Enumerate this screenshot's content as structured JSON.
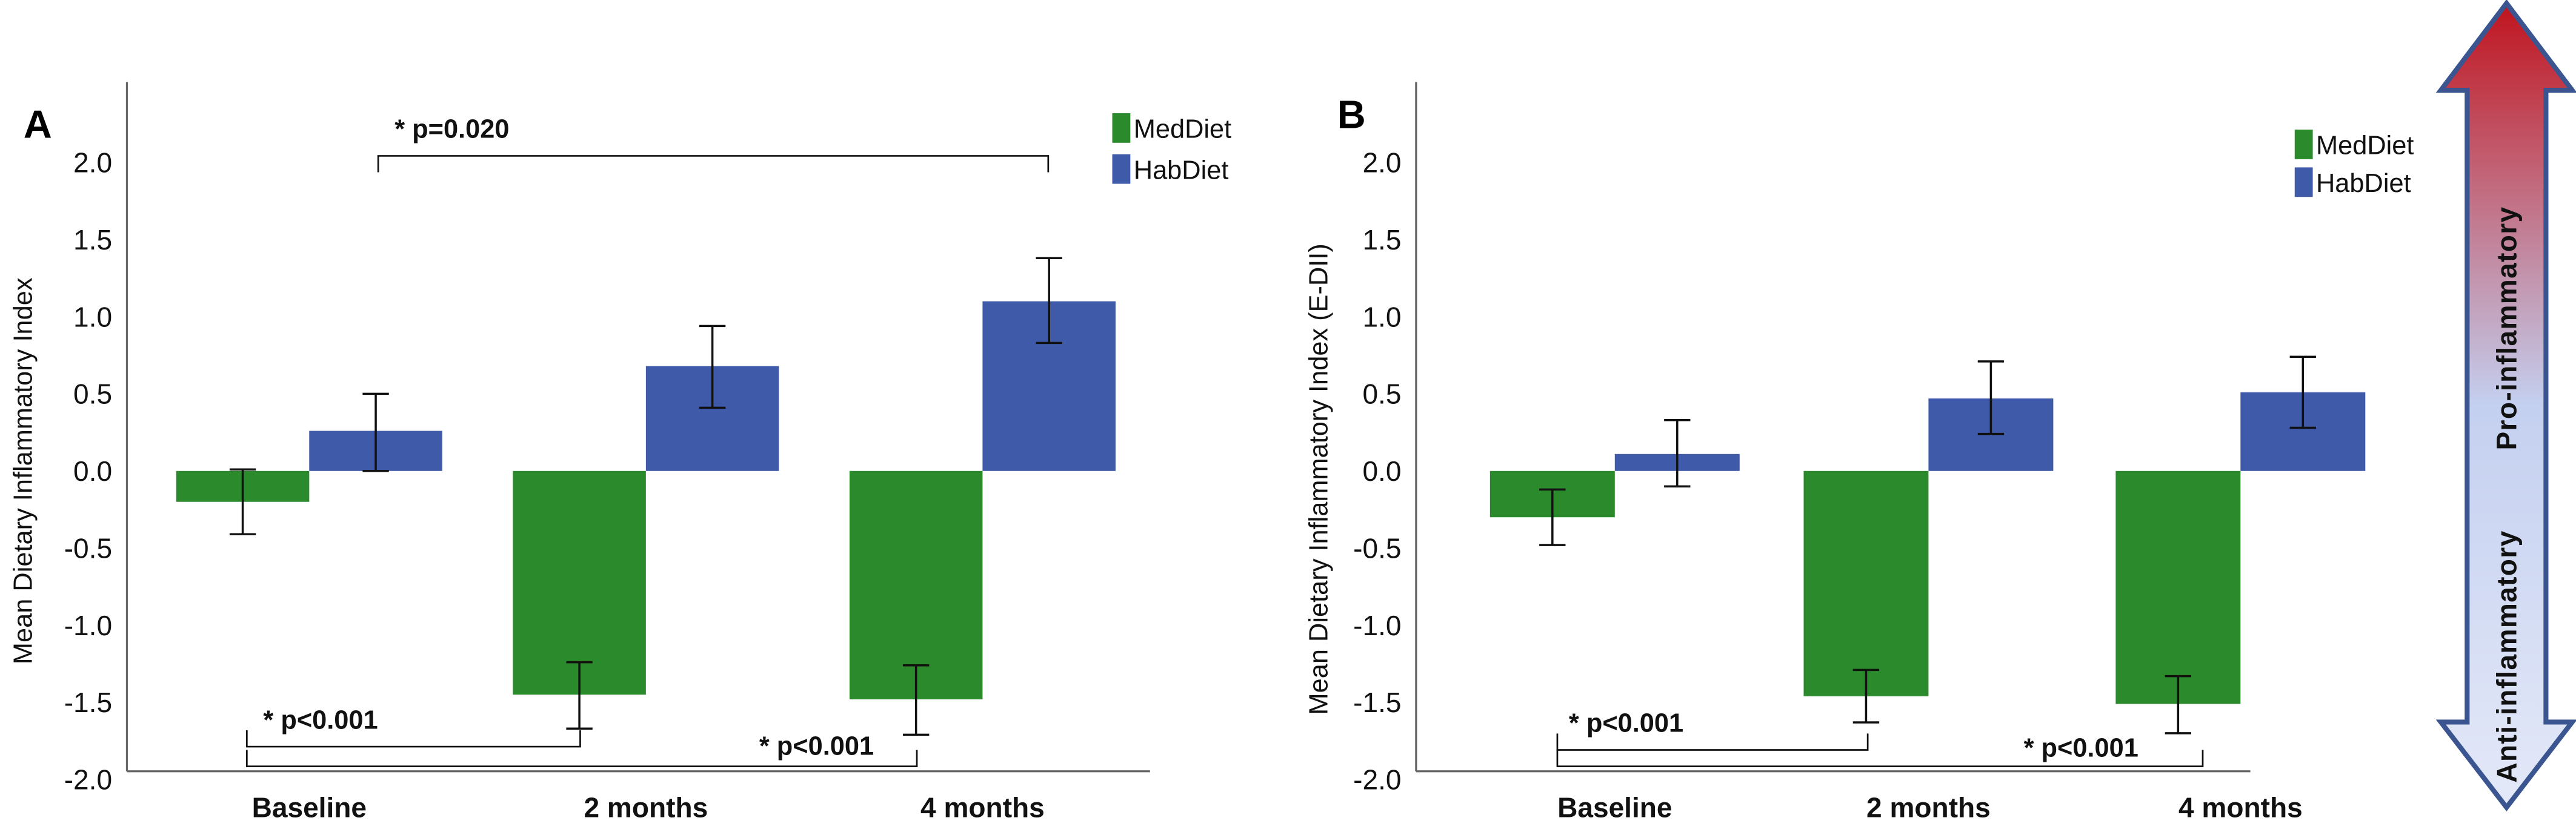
{
  "colors": {
    "MedDiet": "#2b8a2b",
    "HabDiet": "#3f5aa8"
  },
  "arrow": {
    "top_label": "Pro-inflammatory",
    "bottom_label": "Anti-inflammatory",
    "colors": {
      "top": "#c0141e",
      "middle": "#c4d0f0",
      "bottom": "#e4e9f8",
      "outline": "#3a5590"
    }
  },
  "chart_data": [
    {
      "panel_label": "A",
      "type": "bar",
      "ylabel": "Mean Dietary Inflammatory Index",
      "ylim": [
        -2.0,
        2.0
      ],
      "yticks": [
        "2.0",
        "1.5",
        "1.0",
        "0.5",
        "0.0",
        "-0.5",
        "-1.0",
        "-1.5",
        "-2.0"
      ],
      "categories": [
        "Baseline",
        "2 months",
        "4 months"
      ],
      "legend": "top-right",
      "series": [
        {
          "name": "MedDiet",
          "values": [
            -0.2,
            -1.45,
            -1.48
          ],
          "err_low": [
            -0.41,
            -1.67,
            -1.71
          ],
          "err_high": [
            0.01,
            -1.24,
            -1.26
          ]
        },
        {
          "name": "HabDiet",
          "values": [
            0.26,
            0.68,
            1.1
          ],
          "err_low": [
            0.0,
            0.41,
            0.83
          ],
          "err_high": [
            0.5,
            0.94,
            1.38
          ]
        }
      ],
      "annotations": [
        {
          "text": "* p=0.020",
          "between": [
            "Baseline HabDiet",
            "4 months HabDiet"
          ]
        },
        {
          "text": "* p<0.001",
          "between": [
            "Baseline MedDiet",
            "2 months MedDiet"
          ]
        },
        {
          "text": "* p<0.001",
          "between": [
            "Baseline MedDiet",
            "4 months MedDiet"
          ]
        }
      ]
    },
    {
      "panel_label": "B",
      "type": "bar",
      "ylabel": "Mean Dietary Inflammatory Index (E-DII)",
      "ylim": [
        -2.0,
        2.0
      ],
      "yticks": [
        "2.0",
        "1.5",
        "1.0",
        "0.5",
        "0.0",
        "-0.5",
        "-1.0",
        "-1.5",
        "-2.0"
      ],
      "categories": [
        "Baseline",
        "2 months",
        "4 months"
      ],
      "legend": "top-right",
      "series": [
        {
          "name": "MedDiet",
          "values": [
            -0.3,
            -1.46,
            -1.51
          ],
          "err_low": [
            -0.48,
            -1.63,
            -1.7
          ],
          "err_high": [
            -0.12,
            -1.29,
            -1.33
          ]
        },
        {
          "name": "HabDiet",
          "values": [
            0.11,
            0.47,
            0.51
          ],
          "err_low": [
            -0.1,
            0.24,
            0.28
          ],
          "err_high": [
            0.33,
            0.71,
            0.74
          ]
        }
      ],
      "annotations": [
        {
          "text": "* p<0.001",
          "between": [
            "Baseline MedDiet",
            "2 months MedDiet"
          ]
        },
        {
          "text": "* p<0.001",
          "between": [
            "Baseline MedDiet",
            "4 months MedDiet"
          ]
        }
      ]
    }
  ]
}
